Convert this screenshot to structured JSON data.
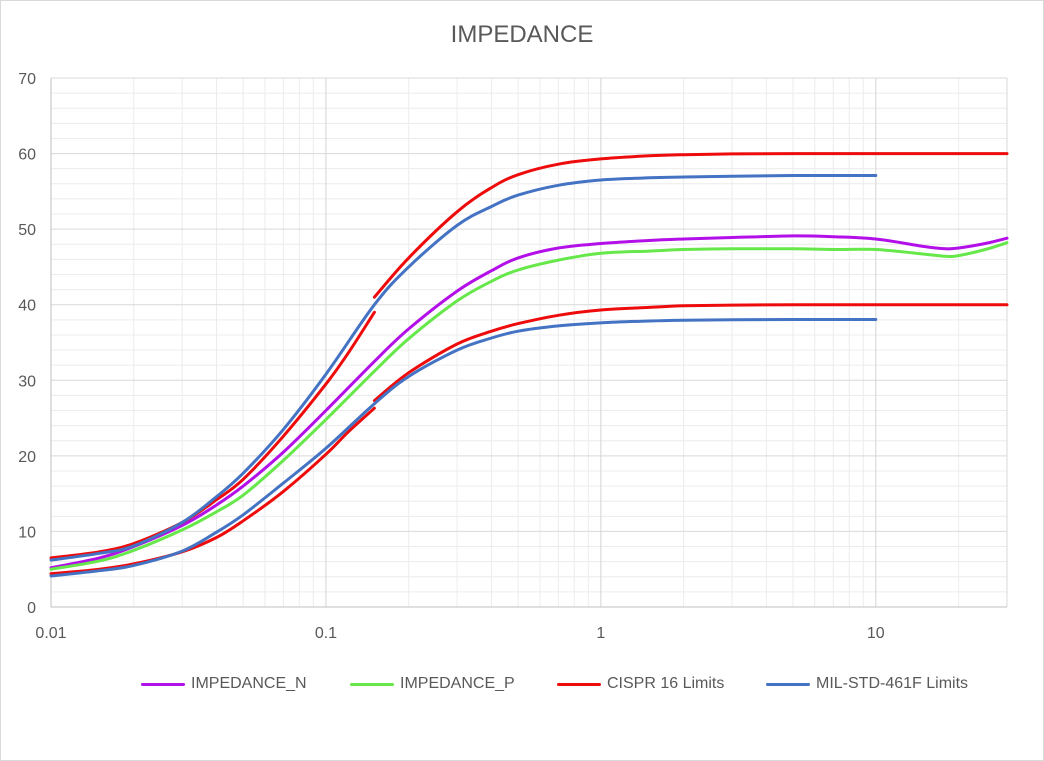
{
  "chart_data": {
    "type": "line",
    "title": "IMPEDANCE",
    "xscale": "log",
    "xlim": [
      0.01,
      30
    ],
    "ylim": [
      0,
      70
    ],
    "xticks": [
      0.01,
      0.1,
      1,
      10
    ],
    "xtick_labels": [
      "0.01",
      "0.1",
      "1",
      "10"
    ],
    "yticks": [
      0,
      10,
      20,
      30,
      40,
      50,
      60,
      70
    ],
    "ytick_labels": [
      "0",
      "10",
      "20",
      "30",
      "40",
      "50",
      "60",
      "70"
    ],
    "grid": "major and minor (log)",
    "legend_position": "bottom",
    "series": [
      {
        "name": "IMPEDANCE_N",
        "color": "#b30fe8",
        "segments": [
          [
            [
              0.01,
              5.2
            ],
            [
              0.015,
              6.5
            ],
            [
              0.02,
              8.0
            ],
            [
              0.03,
              10.8
            ],
            [
              0.04,
              13.5
            ],
            [
              0.05,
              16.0
            ],
            [
              0.07,
              20.5
            ],
            [
              0.1,
              26.0
            ],
            [
              0.15,
              32.5
            ],
            [
              0.2,
              36.8
            ],
            [
              0.3,
              41.8
            ],
            [
              0.4,
              44.5
            ],
            [
              0.5,
              46.2
            ],
            [
              0.7,
              47.5
            ],
            [
              1,
              48.1
            ],
            [
              1.5,
              48.5
            ],
            [
              2,
              48.7
            ],
            [
              3,
              48.9
            ],
            [
              5,
              49.1
            ],
            [
              7,
              49.0
            ],
            [
              10,
              48.7
            ],
            [
              15,
              47.7
            ],
            [
              18,
              47.4
            ],
            [
              20,
              47.5
            ],
            [
              25,
              48.1
            ],
            [
              30,
              48.8
            ]
          ]
        ]
      },
      {
        "name": "IMPEDANCE_P",
        "color": "#66e84a",
        "segments": [
          [
            [
              0.01,
              5.0
            ],
            [
              0.015,
              6.1
            ],
            [
              0.02,
              7.5
            ],
            [
              0.03,
              10.2
            ],
            [
              0.04,
              12.6
            ],
            [
              0.05,
              14.8
            ],
            [
              0.07,
              19.4
            ],
            [
              0.1,
              24.8
            ],
            [
              0.15,
              31.2
            ],
            [
              0.2,
              35.5
            ],
            [
              0.3,
              40.5
            ],
            [
              0.4,
              43.1
            ],
            [
              0.5,
              44.6
            ],
            [
              0.7,
              45.9
            ],
            [
              1,
              46.8
            ],
            [
              1.5,
              47.1
            ],
            [
              2,
              47.3
            ],
            [
              3,
              47.4
            ],
            [
              5,
              47.4
            ],
            [
              7,
              47.3
            ],
            [
              10,
              47.3
            ],
            [
              15,
              46.7
            ],
            [
              18,
              46.4
            ],
            [
              20,
              46.5
            ],
            [
              25,
              47.3
            ],
            [
              30,
              48.2
            ]
          ]
        ]
      },
      {
        "name": "CISPR 16 Limits",
        "color": "#ed0b0b",
        "segments": [
          [
            [
              0.01,
              6.5
            ],
            [
              0.015,
              7.3
            ],
            [
              0.02,
              8.4
            ],
            [
              0.03,
              11.2
            ],
            [
              0.04,
              14.2
            ],
            [
              0.05,
              16.9
            ],
            [
              0.07,
              22.6
            ],
            [
              0.1,
              29.5
            ],
            [
              0.12,
              33.5
            ],
            [
              0.15,
              39.0
            ]
          ],
          [
            [
              0.15,
              41.0
            ],
            [
              0.2,
              46.2
            ],
            [
              0.3,
              52.3
            ],
            [
              0.4,
              55.5
            ],
            [
              0.5,
              57.2
            ],
            [
              0.7,
              58.6
            ],
            [
              1,
              59.3
            ],
            [
              1.5,
              59.7
            ],
            [
              2,
              59.85
            ],
            [
              3,
              59.95
            ],
            [
              5,
              60.0
            ],
            [
              10,
              60.0
            ],
            [
              20,
              60.0
            ],
            [
              30,
              60.0
            ]
          ],
          [
            [
              0.01,
              4.4
            ],
            [
              0.015,
              5.0
            ],
            [
              0.02,
              5.7
            ],
            [
              0.03,
              7.3
            ],
            [
              0.04,
              9.2
            ],
            [
              0.05,
              11.4
            ],
            [
              0.07,
              15.3
            ],
            [
              0.1,
              20.2
            ],
            [
              0.12,
              23.1
            ],
            [
              0.15,
              26.3
            ]
          ],
          [
            [
              0.15,
              27.3
            ],
            [
              0.2,
              31.0
            ],
            [
              0.3,
              34.8
            ],
            [
              0.4,
              36.5
            ],
            [
              0.5,
              37.5
            ],
            [
              0.7,
              38.6
            ],
            [
              1,
              39.3
            ],
            [
              1.5,
              39.65
            ],
            [
              2,
              39.85
            ],
            [
              3,
              39.95
            ],
            [
              5,
              40.0
            ],
            [
              10,
              40.0
            ],
            [
              20,
              40.0
            ],
            [
              30,
              40.0
            ]
          ]
        ]
      },
      {
        "name": "MIL-STD-461F Limits",
        "color": "#4473c4",
        "segments": [
          [
            [
              0.01,
              6.2
            ],
            [
              0.015,
              7.1
            ],
            [
              0.02,
              8.1
            ],
            [
              0.03,
              11.2
            ],
            [
              0.04,
              14.6
            ],
            [
              0.05,
              17.7
            ],
            [
              0.07,
              23.5
            ],
            [
              0.1,
              30.8
            ],
            [
              0.15,
              40.0
            ],
            [
              0.2,
              45.0
            ],
            [
              0.3,
              50.5
            ],
            [
              0.4,
              53.0
            ],
            [
              0.5,
              54.5
            ],
            [
              0.7,
              55.8
            ],
            [
              1,
              56.5
            ],
            [
              1.5,
              56.8
            ],
            [
              2,
              56.9
            ],
            [
              3,
              57.0
            ],
            [
              5,
              57.1
            ],
            [
              10,
              57.1
            ]
          ],
          [
            [
              0.01,
              4.1
            ],
            [
              0.015,
              4.8
            ],
            [
              0.02,
              5.5
            ],
            [
              0.03,
              7.4
            ],
            [
              0.04,
              9.9
            ],
            [
              0.05,
              12.2
            ],
            [
              0.07,
              16.4
            ],
            [
              0.1,
              21.0
            ],
            [
              0.15,
              26.9
            ],
            [
              0.2,
              30.5
            ],
            [
              0.3,
              34.0
            ],
            [
              0.4,
              35.6
            ],
            [
              0.5,
              36.5
            ],
            [
              0.7,
              37.2
            ],
            [
              1,
              37.6
            ],
            [
              1.5,
              37.85
            ],
            [
              2,
              37.95
            ],
            [
              3,
              38.0
            ],
            [
              5,
              38.05
            ],
            [
              10,
              38.05
            ]
          ]
        ]
      }
    ]
  }
}
